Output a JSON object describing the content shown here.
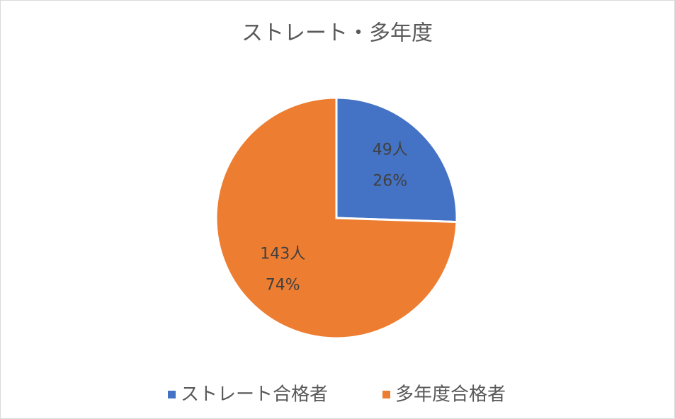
{
  "chart_data": {
    "type": "pie",
    "title": "ストレート・多年度",
    "categories": [
      "ストレート合格者",
      "多年度合格者"
    ],
    "values": [
      49,
      143
    ],
    "value_labels": [
      "49人",
      "143人"
    ],
    "percentages": [
      26,
      74
    ],
    "percentage_labels": [
      "26%",
      "74%"
    ],
    "colors": [
      "#4472c4",
      "#ed7d31"
    ],
    "legend": "bottom"
  }
}
